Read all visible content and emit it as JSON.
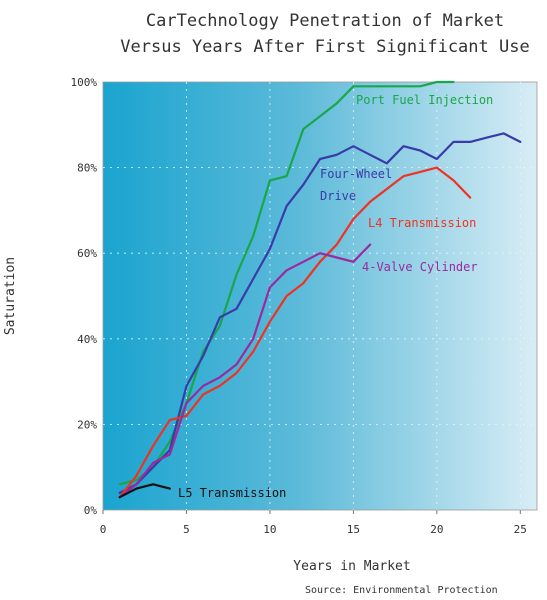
{
  "chart_data": {
    "type": "line",
    "title_lines": [
      "CarTechnology Penetration of Market",
      "Versus Years After First Significant Use"
    ],
    "xlabel": "Years in Market",
    "ylabel": "Saturation",
    "source": "Source: Environmental Protection",
    "xlim": [
      0,
      26
    ],
    "ylim": [
      0,
      100
    ],
    "xticks": [
      "0",
      "5",
      "10",
      "15",
      "20",
      "25"
    ],
    "yticks": [
      "0%",
      "20%",
      "40%",
      "60%",
      "80%",
      "100%"
    ],
    "grid": true,
    "series": [
      {
        "name": "Port Fuel Injection",
        "color": "#1aa64a",
        "x": [
          1,
          2,
          3,
          4,
          5,
          6,
          7,
          8,
          9,
          10,
          11,
          12,
          13,
          14,
          15,
          16,
          17,
          18,
          19,
          20,
          21
        ],
        "y": [
          6,
          7,
          10,
          16,
          25,
          37,
          43,
          55,
          64,
          77,
          78,
          89,
          92,
          95,
          99,
          99,
          99,
          99,
          99,
          100,
          100
        ]
      },
      {
        "name": "Four-Wheel Drive",
        "color": "#3a3aa8",
        "x": [
          1,
          2,
          3,
          4,
          5,
          6,
          7,
          8,
          9,
          10,
          11,
          12,
          13,
          14,
          15,
          16,
          17,
          18,
          19,
          20,
          21,
          22,
          23,
          24,
          25
        ],
        "y": [
          4,
          6,
          10,
          14,
          29,
          36,
          45,
          47,
          54,
          61,
          71,
          76,
          82,
          83,
          85,
          83,
          81,
          85,
          84,
          82,
          86,
          86,
          87,
          88,
          86
        ]
      },
      {
        "name": "L4 Transmission",
        "color": "#ee3322",
        "x": [
          1,
          2,
          3,
          4,
          5,
          6,
          7,
          8,
          9,
          10,
          11,
          12,
          13,
          14,
          15,
          16,
          17,
          18,
          19,
          20,
          21,
          22
        ],
        "y": [
          3,
          8,
          15,
          21,
          22,
          27,
          29,
          32,
          37,
          44,
          50,
          53,
          58,
          62,
          68,
          72,
          75,
          78,
          79,
          80,
          77,
          73
        ]
      },
      {
        "name": "4-Valve Cylinder",
        "color": "#9a2aa0",
        "x": [
          1,
          2,
          3,
          4,
          5,
          6,
          7,
          8,
          9,
          10,
          11,
          12,
          13,
          14,
          15,
          16
        ],
        "y": [
          3,
          6,
          11,
          13,
          25,
          29,
          31,
          34,
          40,
          52,
          56,
          58,
          60,
          59,
          58,
          62
        ]
      },
      {
        "name": "L5 Transmission",
        "color": "#111111",
        "x": [
          1,
          2,
          3,
          4
        ],
        "y": [
          3,
          5,
          6,
          5
        ]
      }
    ]
  }
}
